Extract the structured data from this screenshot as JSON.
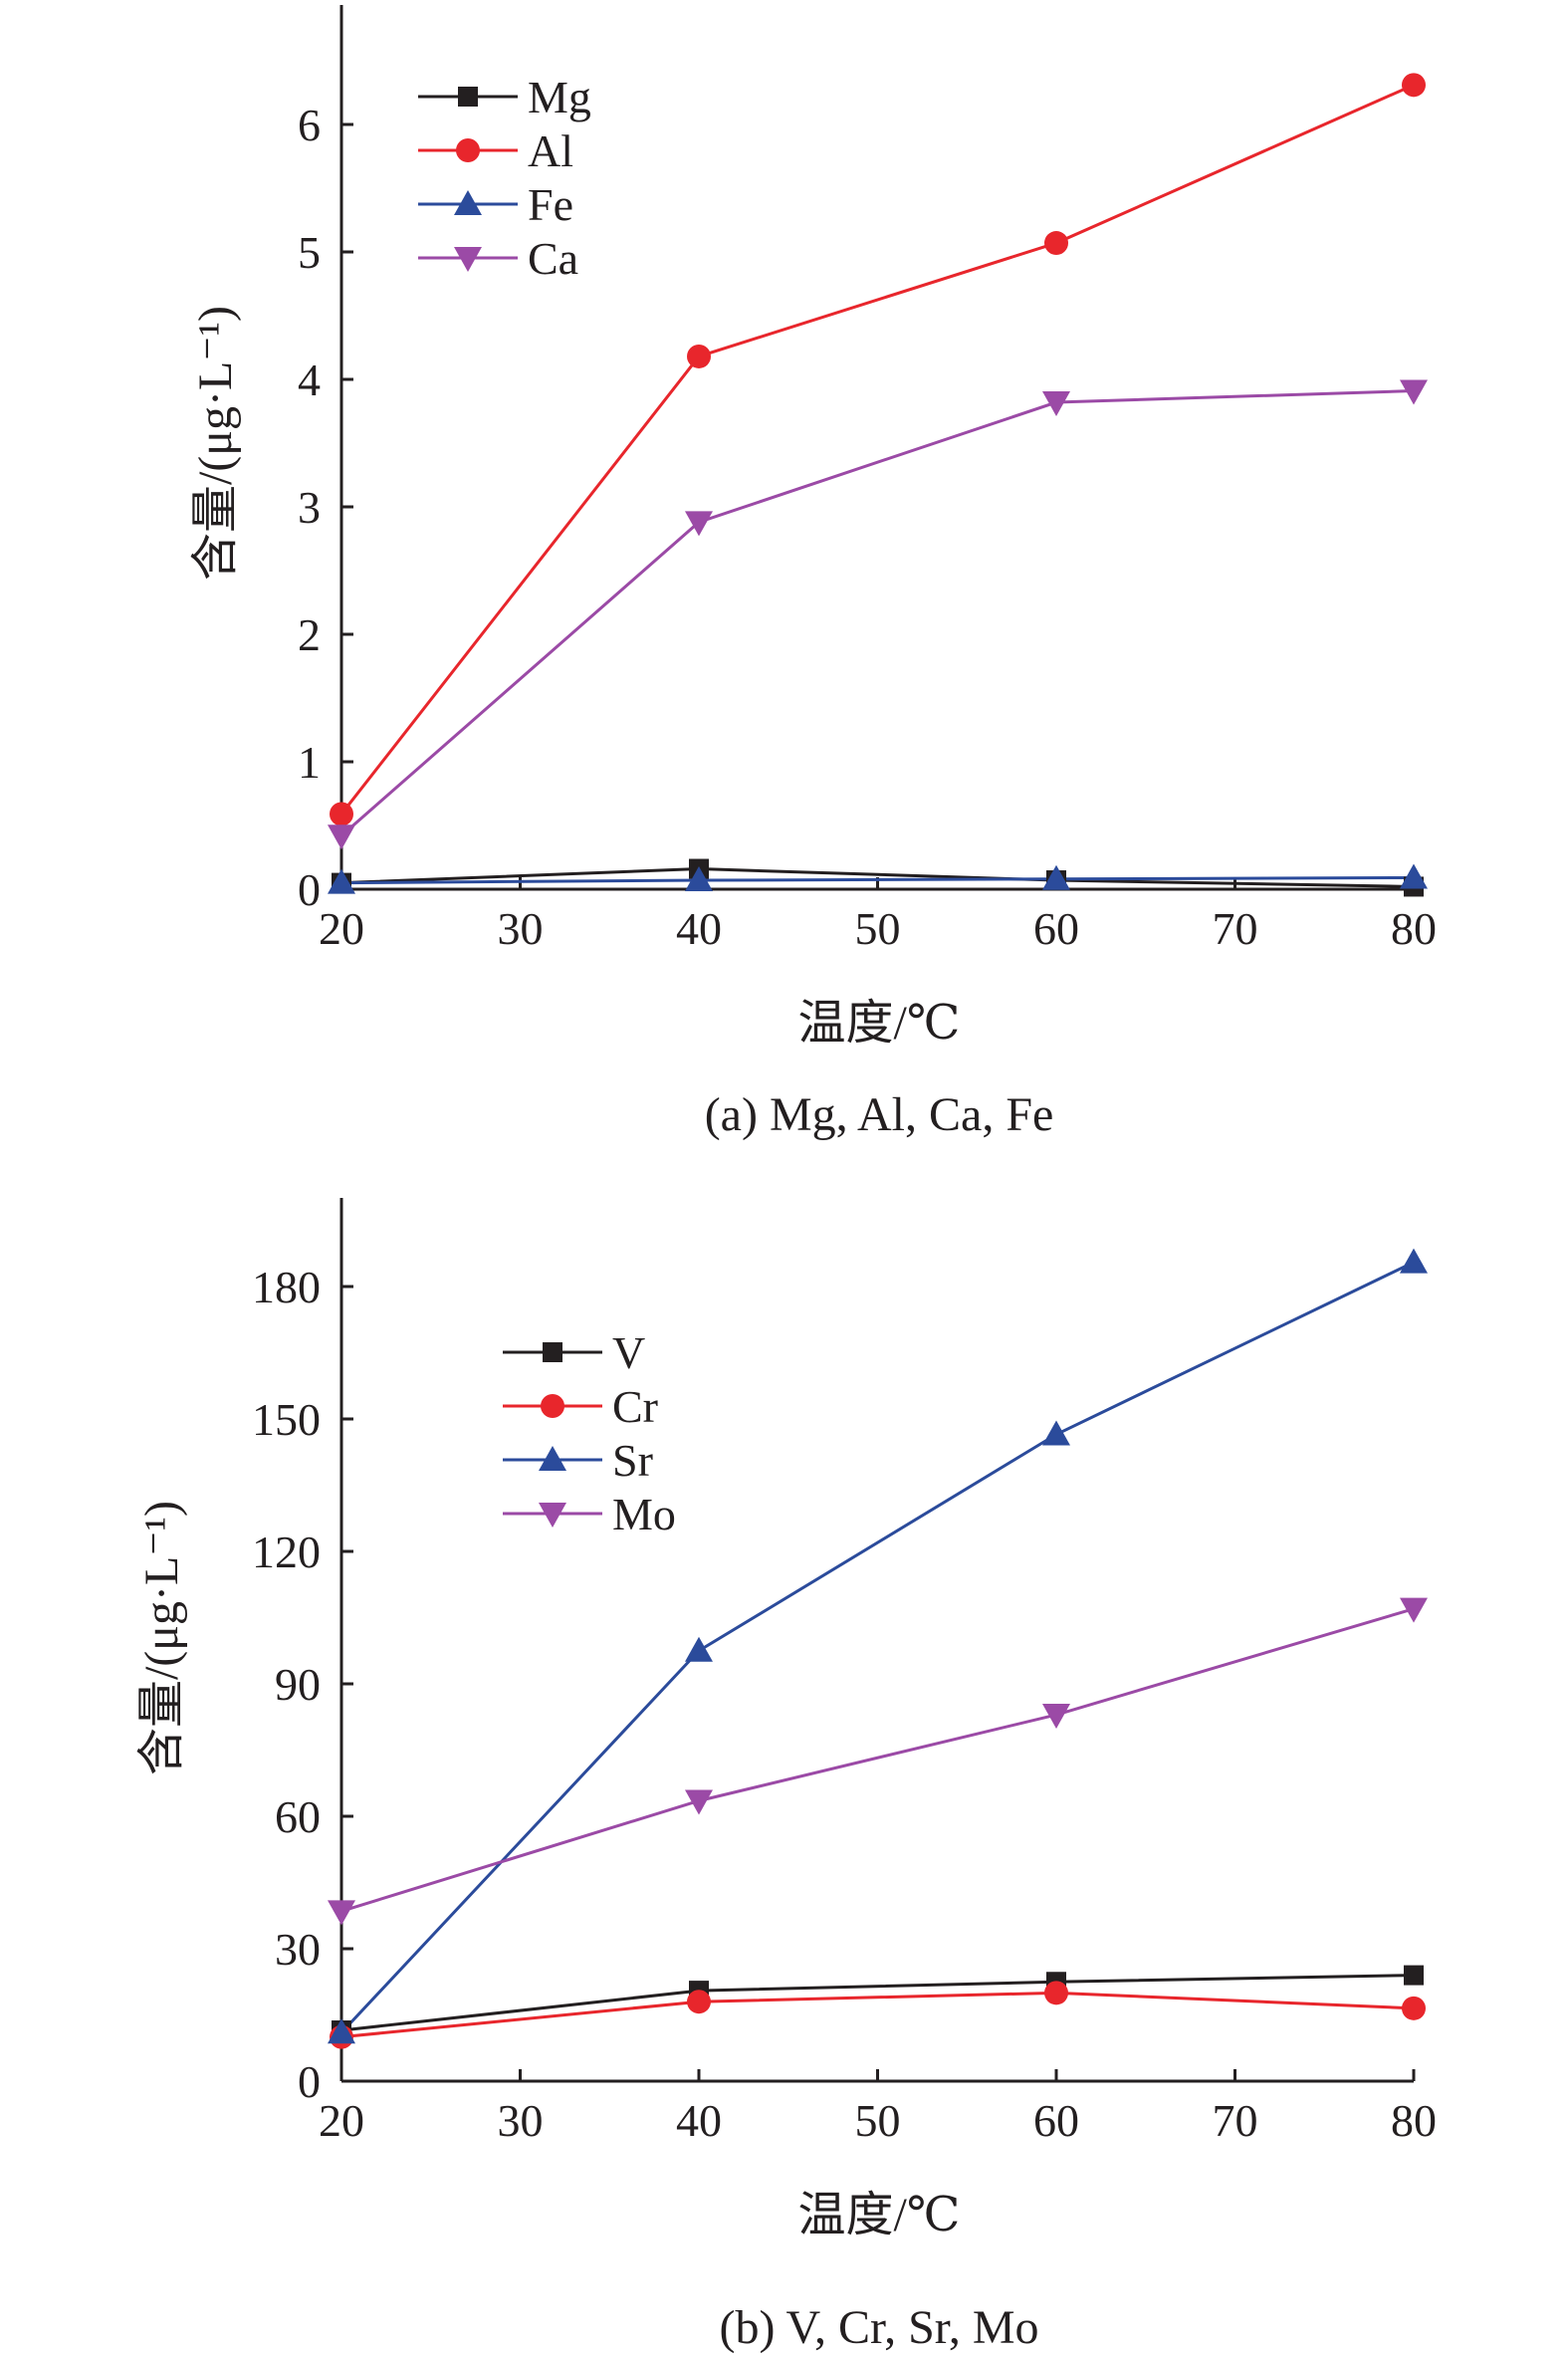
{
  "chart_data": [
    {
      "type": "line",
      "caption": "(a) Mg, Al, Ca, Fe",
      "xlabel": "温度/℃",
      "ylabel": "含量/(μg·L⁻¹)",
      "x": [
        20,
        40,
        60,
        80
      ],
      "xlim": [
        20,
        80
      ],
      "xticks": [
        20,
        30,
        40,
        50,
        60,
        70,
        80
      ],
      "ylim": [
        0,
        7
      ],
      "yticks": [
        0,
        1,
        2,
        3,
        4,
        5,
        6
      ],
      "grid": false,
      "legend_position": "top-left",
      "series": [
        {
          "name": "Mg",
          "values": [
            0.05,
            0.16,
            0.07,
            0.02
          ],
          "color": "#231f20",
          "marker": "square"
        },
        {
          "name": "Al",
          "values": [
            0.59,
            4.18,
            5.07,
            6.31
          ],
          "color": "#e8262c",
          "marker": "circle"
        },
        {
          "name": "Fe",
          "values": [
            0.05,
            0.07,
            0.08,
            0.09
          ],
          "color": "#2b4b9b",
          "marker": "triangle-up"
        },
        {
          "name": "Ca",
          "values": [
            0.42,
            2.88,
            3.82,
            3.91
          ],
          "color": "#9b4aa6",
          "marker": "triangle-down"
        }
      ]
    },
    {
      "type": "line",
      "caption": "(b) V, Cr, Sr, Mo",
      "xlabel": "温度/℃",
      "ylabel": "含量/(μg·L⁻¹)",
      "x": [
        20,
        40,
        60,
        80
      ],
      "xlim": [
        20,
        80
      ],
      "xticks": [
        20,
        30,
        40,
        50,
        60,
        70,
        80
      ],
      "ylim": [
        0,
        200
      ],
      "yticks": [
        0,
        30,
        60,
        90,
        120,
        150,
        180
      ],
      "grid": false,
      "legend_position": "top-left",
      "series": [
        {
          "name": "V",
          "values": [
            11.5,
            20.5,
            22.5,
            24.0
          ],
          "color": "#231f20",
          "marker": "square"
        },
        {
          "name": "Cr",
          "values": [
            10.0,
            18.0,
            20.0,
            16.5
          ],
          "color": "#e8262c",
          "marker": "circle"
        },
        {
          "name": "Sr",
          "values": [
            11.0,
            97.5,
            146.5,
            185.5
          ],
          "color": "#2b4b9b",
          "marker": "triangle-up"
        },
        {
          "name": "Mo",
          "values": [
            38.5,
            63.5,
            83.0,
            107.0
          ],
          "color": "#9b4aa6",
          "marker": "triangle-down"
        }
      ]
    }
  ]
}
